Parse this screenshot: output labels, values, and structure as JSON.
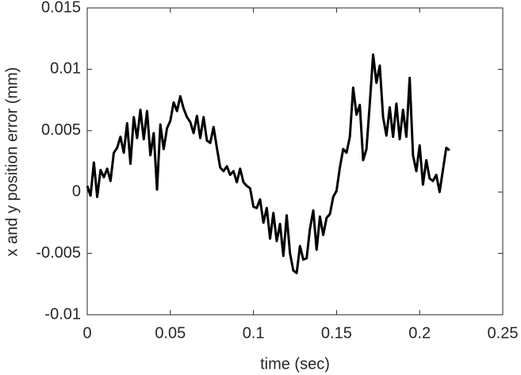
{
  "chart_data": {
    "type": "line",
    "xlabel": "time (sec)",
    "ylabel": "x and y position error (mm)",
    "color": "#000000",
    "x": [
      0,
      0.002,
      0.004,
      0.006,
      0.008,
      0.01,
      0.012,
      0.014,
      0.016,
      0.018,
      0.02,
      0.022,
      0.024,
      0.026,
      0.028,
      0.03,
      0.032,
      0.034,
      0.036,
      0.038,
      0.04,
      0.042,
      0.044,
      0.046,
      0.048,
      0.05,
      0.052,
      0.054,
      0.056,
      0.058,
      0.06,
      0.062,
      0.064,
      0.066,
      0.068,
      0.07,
      0.072,
      0.074,
      0.076,
      0.078,
      0.08,
      0.082,
      0.084,
      0.086,
      0.088,
      0.09,
      0.092,
      0.094,
      0.096,
      0.098,
      0.1,
      0.102,
      0.104,
      0.106,
      0.108,
      0.11,
      0.112,
      0.114,
      0.116,
      0.118,
      0.12,
      0.122,
      0.124,
      0.126,
      0.128,
      0.13,
      0.132,
      0.134,
      0.136,
      0.138,
      0.14,
      0.142,
      0.144,
      0.146,
      0.148,
      0.15,
      0.152,
      0.154,
      0.156,
      0.158,
      0.16,
      0.162,
      0.164,
      0.166,
      0.168,
      0.17,
      0.172,
      0.174,
      0.176,
      0.178,
      0.18,
      0.182,
      0.184,
      0.186,
      0.188,
      0.19,
      0.192,
      0.194,
      0.196,
      0.198,
      0.2,
      0.202,
      0.204,
      0.206,
      0.208,
      0.21,
      0.212,
      0.214,
      0.216,
      0.218
    ],
    "values": [
      0.0005,
      -0.0003,
      0.0024,
      -0.0004,
      0.0018,
      0.0012,
      0.0019,
      0.0009,
      0.0032,
      0.0036,
      0.0045,
      0.0032,
      0.0056,
      0.0023,
      0.0061,
      0.0044,
      0.0067,
      0.0043,
      0.0066,
      0.003,
      0.0048,
      0.0002,
      0.0055,
      0.0035,
      0.0052,
      0.0058,
      0.0073,
      0.0066,
      0.0078,
      0.0068,
      0.0061,
      0.0057,
      0.0048,
      0.0062,
      0.0044,
      0.0061,
      0.0042,
      0.004,
      0.0053,
      0.0036,
      0.002,
      0.0017,
      0.0021,
      0.0014,
      0.0017,
      0.0008,
      0.0019,
      0.0008,
      0.0005,
      0.0003,
      -0.0012,
      -0.0013,
      -0.0006,
      -0.0025,
      -0.0013,
      -0.0038,
      -0.0017,
      -0.004,
      -0.0026,
      -0.0052,
      -0.0019,
      -0.005,
      -0.0064,
      -0.0066,
      -0.0044,
      -0.0055,
      -0.0054,
      -0.003,
      -0.0015,
      -0.0047,
      -0.002,
      -0.0035,
      -0.0021,
      -0.0018,
      -0.0004,
      0.0001,
      0.002,
      0.0035,
      0.0032,
      0.0045,
      0.0085,
      0.0063,
      0.0071,
      0.0026,
      0.0035,
      0.0072,
      0.0112,
      0.0089,
      0.0103,
      0.0061,
      0.0046,
      0.0069,
      0.0045,
      0.0072,
      0.0043,
      0.0067,
      0.0045,
      0.0093,
      0.003,
      0.0017,
      0.0038,
      0.0006,
      0.0026,
      0.0011,
      0.0009,
      0.0014,
      0.0,
      0.0018,
      0.0036,
      0.0034
    ],
    "xlim": [
      0,
      0.25
    ],
    "xticks": [
      0,
      0.05,
      0.1,
      0.15,
      0.2,
      0.25
    ],
    "ylim": [
      -0.01,
      0.015
    ],
    "yticks": [
      -0.01,
      -0.005,
      0,
      0.005,
      0.01,
      0.015
    ],
    "grid": false
  }
}
